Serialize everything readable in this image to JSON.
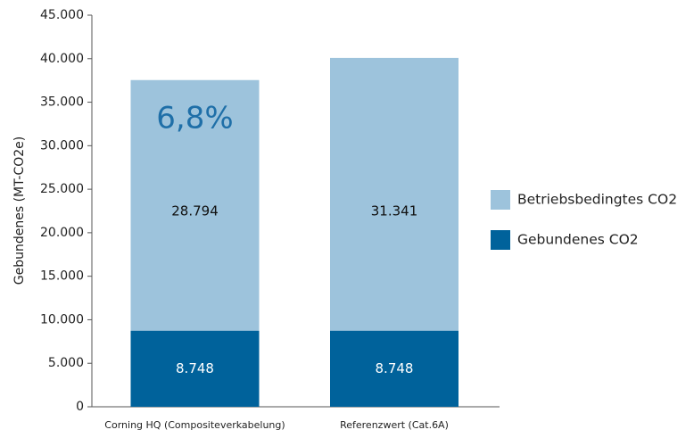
{
  "chart_data": {
    "type": "stacked_bar",
    "y_label": "Gebundenes (MT-CO2e)",
    "annotation": "6,8%",
    "categories": [
      "Corning HQ (Compositeverkabelung)",
      "Referenzwert (Cat.6A)"
    ],
    "series": [
      {
        "name": "Gebundenes CO2",
        "color": "#00629b",
        "values": [
          8748,
          8748
        ],
        "value_labels": [
          "8.748",
          "8.748"
        ]
      },
      {
        "name": "Betriebsbedingtes CO2",
        "color": "#9dc3dc",
        "values": [
          28794,
          31341
        ],
        "value_labels": [
          "28.794",
          "31.341"
        ]
      }
    ],
    "ylim": [
      0,
      45000
    ],
    "yticks": [
      0,
      {
        "value": 5000,
        "label": "5.000"
      },
      {
        "value": 10000,
        "label": "10.000"
      },
      {
        "value": 15000,
        "label": "15.000"
      },
      {
        "value": 20000,
        "label": "20.000"
      },
      {
        "value": 25000,
        "label": "25.000"
      },
      {
        "value": 30000,
        "label": "30.000"
      },
      {
        "value": 35000,
        "label": "35.000"
      },
      {
        "value": 40000,
        "label": "40.000"
      },
      {
        "value": 45000,
        "label": "45.000"
      }
    ]
  }
}
